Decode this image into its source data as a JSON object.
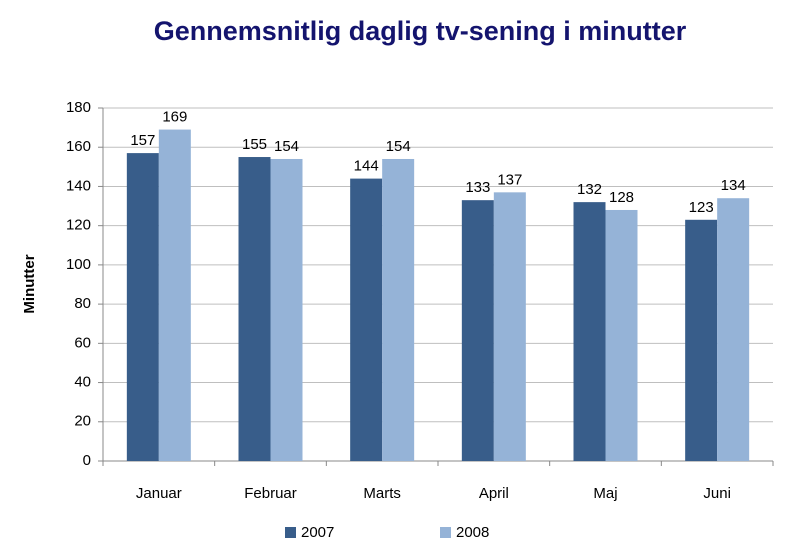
{
  "chart_data": {
    "type": "bar",
    "title": "Gennemsnitlig daglig tv-sening i minutter",
    "y_label": "Minutter",
    "categories": [
      "Januar",
      "Februar",
      "Marts",
      "April",
      "Maj",
      "Juni"
    ],
    "series": [
      {
        "name": "2007",
        "color": "#385d8a",
        "values": [
          157,
          155,
          144,
          133,
          132,
          123
        ]
      },
      {
        "name": "2008",
        "color": "#95b3d7",
        "values": [
          169,
          154,
          154,
          137,
          128,
          134
        ]
      }
    ],
    "ylim": [
      0,
      180
    ],
    "yticks": [
      0,
      20,
      40,
      60,
      80,
      100,
      120,
      140,
      160,
      180
    ],
    "grid": true,
    "legend": "bottom"
  }
}
